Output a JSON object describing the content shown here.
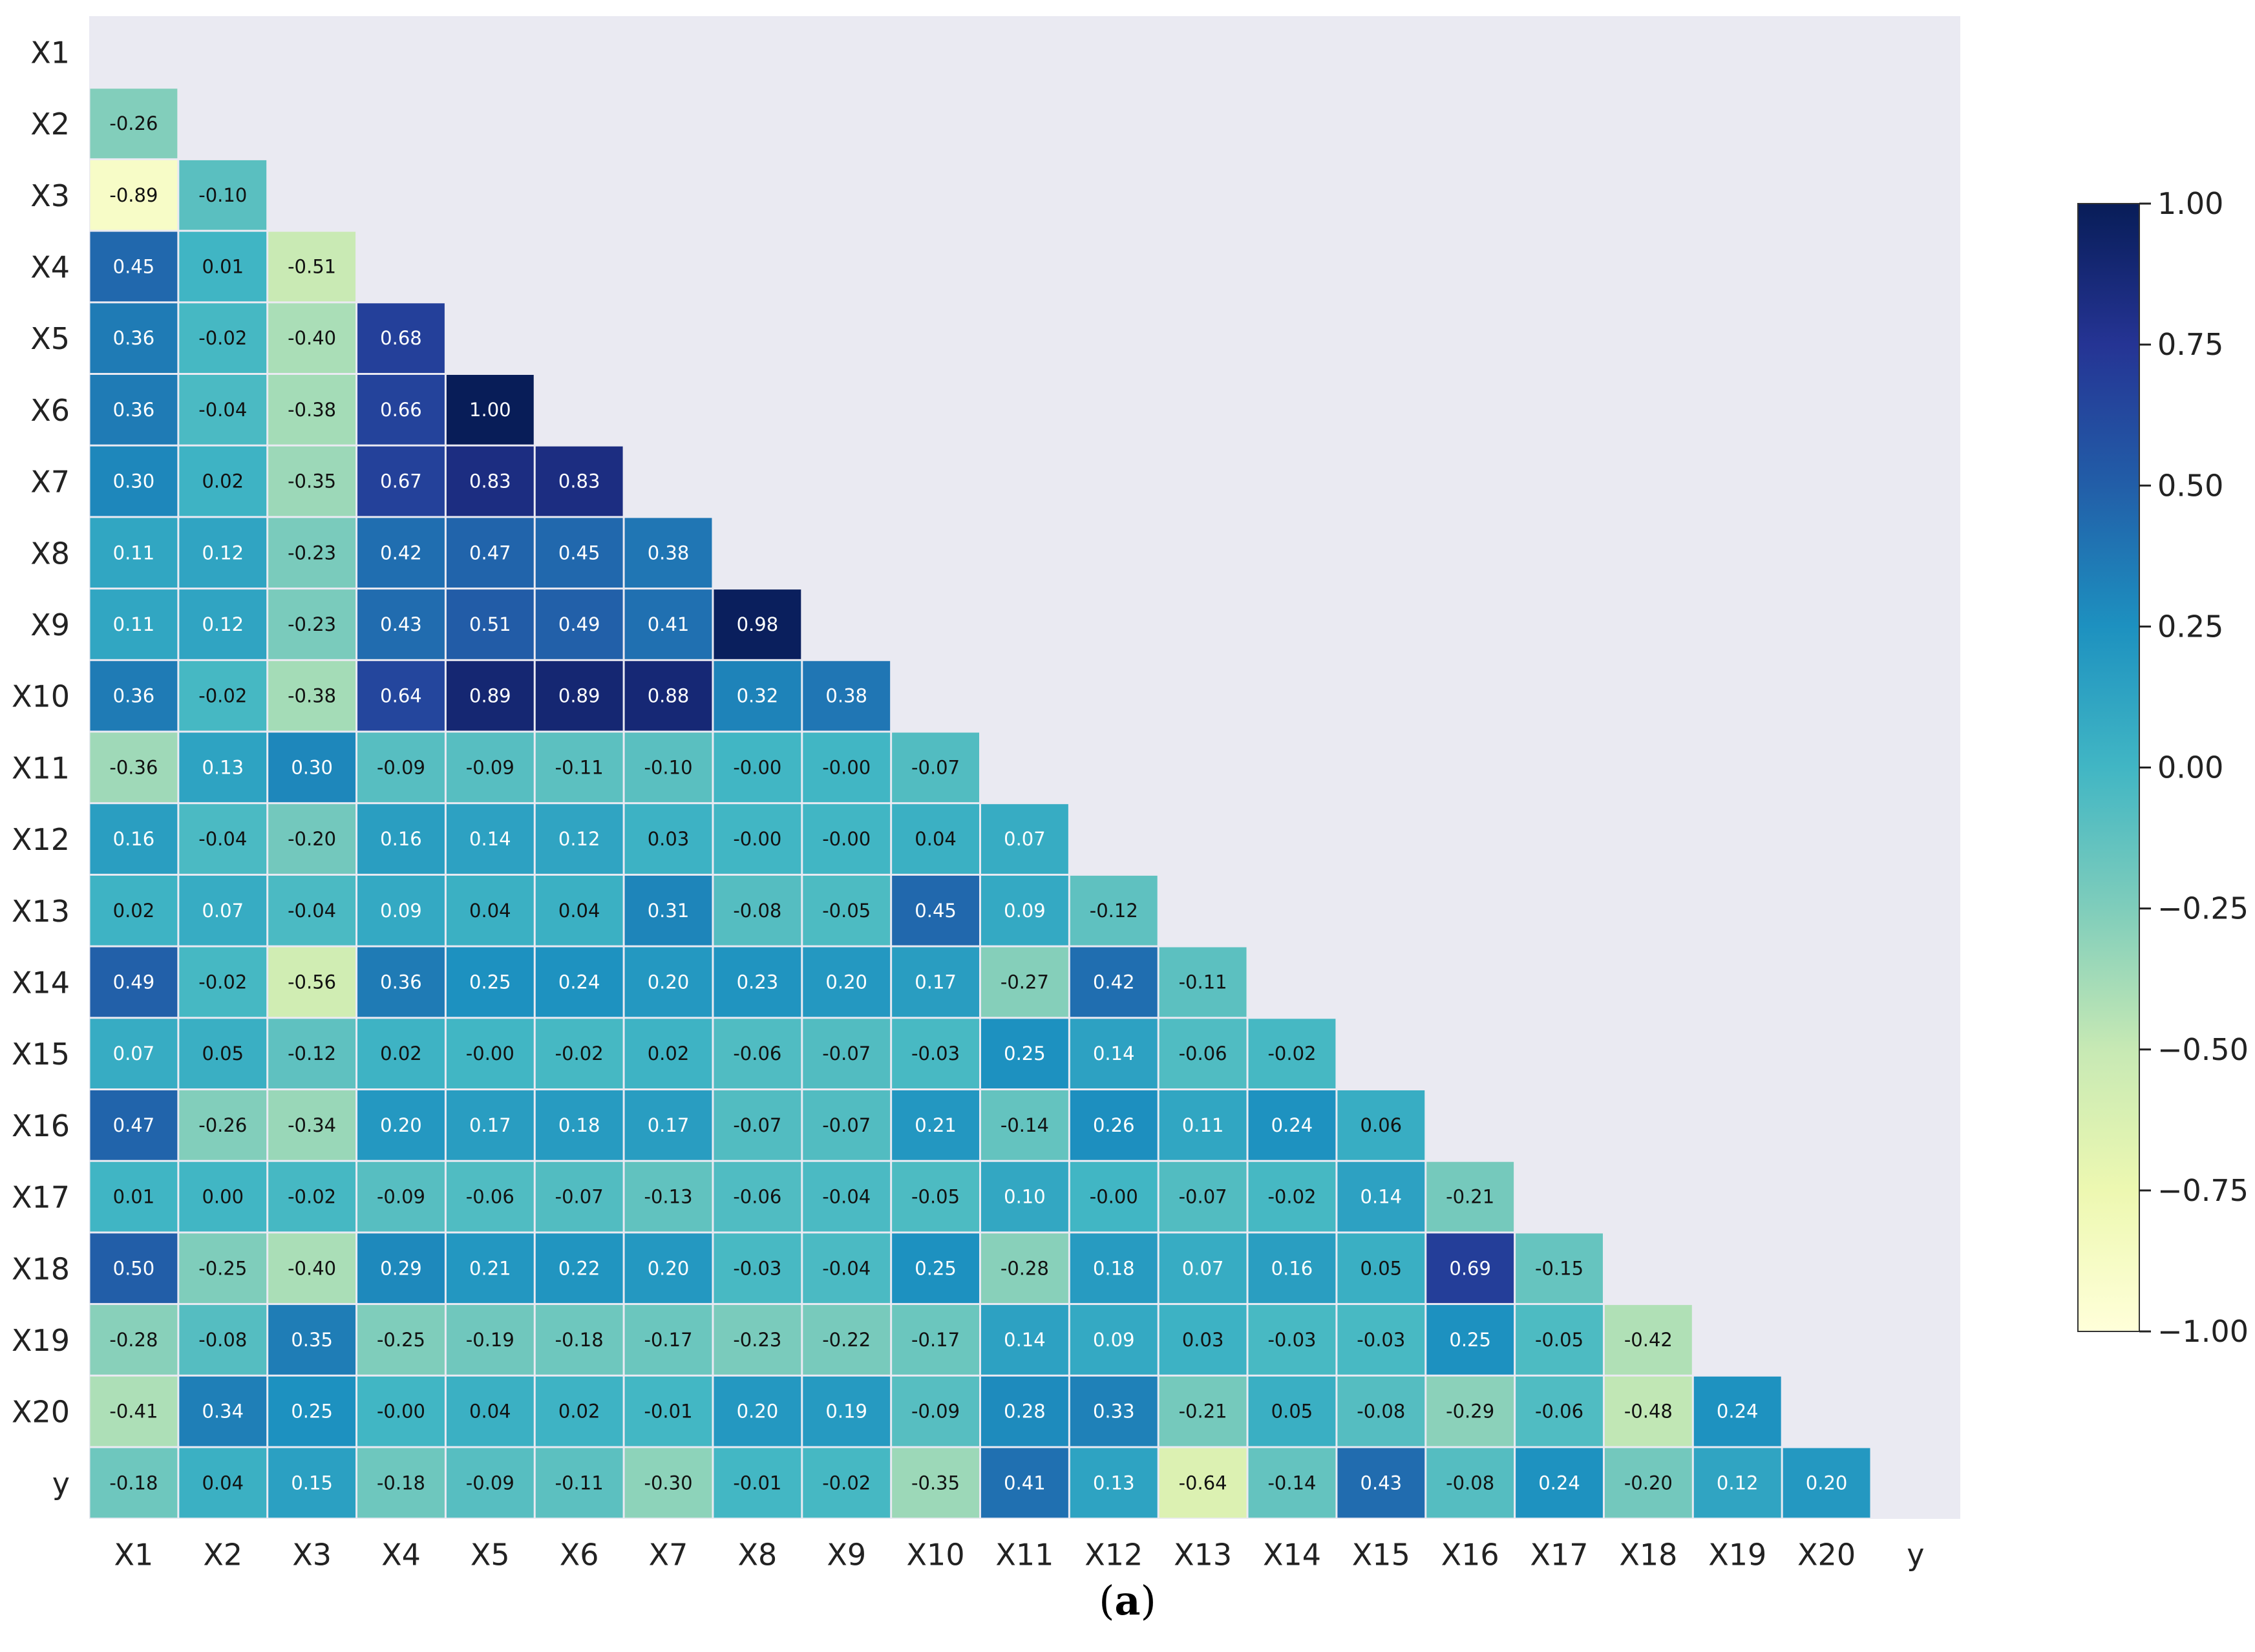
{
  "chart_data": {
    "type": "heatmap",
    "variables": [
      "X1",
      "X2",
      "X3",
      "X4",
      "X5",
      "X6",
      "X7",
      "X8",
      "X9",
      "X10",
      "X11",
      "X12",
      "X13",
      "X14",
      "X15",
      "X16",
      "X17",
      "X18",
      "X19",
      "X20",
      "y"
    ],
    "lower_triangle_rows": [
      [],
      [
        -0.26
      ],
      [
        -0.89,
        -0.1
      ],
      [
        0.45,
        0.01,
        -0.51
      ],
      [
        0.36,
        -0.02,
        -0.4,
        0.68
      ],
      [
        0.36,
        -0.04,
        -0.38,
        0.66,
        1.0
      ],
      [
        0.3,
        0.02,
        -0.35,
        0.67,
        0.83,
        0.83
      ],
      [
        0.11,
        0.12,
        -0.23,
        0.42,
        0.47,
        0.45,
        0.38
      ],
      [
        0.11,
        0.12,
        -0.23,
        0.43,
        0.51,
        0.49,
        0.41,
        0.98
      ],
      [
        0.36,
        -0.02,
        -0.38,
        0.64,
        0.89,
        0.89,
        0.88,
        0.32,
        0.38
      ],
      [
        -0.36,
        0.13,
        0.3,
        -0.09,
        -0.09,
        -0.11,
        -0.1,
        -0.0,
        -0.0,
        -0.07
      ],
      [
        0.16,
        -0.04,
        -0.2,
        0.16,
        0.14,
        0.12,
        0.03,
        -0.0,
        -0.0,
        0.04,
        0.07
      ],
      [
        0.02,
        0.07,
        -0.04,
        0.09,
        0.04,
        0.04,
        0.31,
        -0.08,
        -0.05,
        0.45,
        0.09,
        -0.12
      ],
      [
        0.49,
        -0.02,
        -0.56,
        0.36,
        0.25,
        0.24,
        0.2,
        0.23,
        0.2,
        0.17,
        -0.27,
        0.42,
        -0.11
      ],
      [
        0.07,
        0.05,
        -0.12,
        0.02,
        -0.0,
        -0.02,
        0.02,
        -0.06,
        -0.07,
        -0.03,
        0.25,
        0.14,
        -0.06,
        -0.02
      ],
      [
        0.47,
        -0.26,
        -0.34,
        0.2,
        0.17,
        0.18,
        0.17,
        -0.07,
        -0.07,
        0.21,
        -0.14,
        0.26,
        0.11,
        0.24,
        0.06
      ],
      [
        0.01,
        0.0,
        -0.02,
        -0.09,
        -0.06,
        -0.07,
        -0.13,
        -0.06,
        -0.04,
        -0.05,
        0.1,
        -0.0,
        -0.07,
        -0.02,
        0.14,
        -0.21
      ],
      [
        0.5,
        -0.25,
        -0.4,
        0.29,
        0.21,
        0.22,
        0.2,
        -0.03,
        -0.04,
        0.25,
        -0.28,
        0.18,
        0.07,
        0.16,
        0.05,
        0.69,
        -0.15
      ],
      [
        -0.28,
        -0.08,
        0.35,
        -0.25,
        -0.19,
        -0.18,
        -0.17,
        -0.23,
        -0.22,
        -0.17,
        0.14,
        0.09,
        0.03,
        -0.03,
        -0.03,
        0.25,
        -0.05,
        -0.42
      ],
      [
        -0.41,
        0.34,
        0.25,
        -0.0,
        0.04,
        0.02,
        -0.01,
        0.2,
        0.19,
        -0.09,
        0.28,
        0.33,
        -0.21,
        0.05,
        -0.08,
        -0.29,
        -0.06,
        -0.48,
        0.24
      ],
      [
        -0.18,
        0.04,
        0.15,
        -0.18,
        -0.09,
        -0.11,
        -0.3,
        -0.01,
        -0.02,
        -0.35,
        0.41,
        0.13,
        -0.64,
        -0.14,
        0.43,
        -0.08,
        0.24,
        -0.2,
        0.12,
        0.2
      ]
    ],
    "cell_labels": [
      [],
      [
        "-0.26"
      ],
      [
        "-0.89",
        "-0.10"
      ],
      [
        "0.45",
        "0.01",
        "-0.51"
      ],
      [
        "0.36",
        "-0.02",
        "-0.40",
        "0.68"
      ],
      [
        "0.36",
        "-0.04",
        "-0.38",
        "0.66",
        "1.00"
      ],
      [
        "0.30",
        "0.02",
        "-0.35",
        "0.67",
        "0.83",
        "0.83"
      ],
      [
        "0.11",
        "0.12",
        "-0.23",
        "0.42",
        "0.47",
        "0.45",
        "0.38"
      ],
      [
        "0.11",
        "0.12",
        "-0.23",
        "0.43",
        "0.51",
        "0.49",
        "0.41",
        "0.98"
      ],
      [
        "0.36",
        "-0.02",
        "-0.38",
        "0.64",
        "0.89",
        "0.89",
        "0.88",
        "0.32",
        "0.38"
      ],
      [
        "-0.36",
        "0.13",
        "0.30",
        "-0.09",
        "-0.09",
        "-0.11",
        "-0.10",
        "-0.00",
        "-0.00",
        "-0.07"
      ],
      [
        "0.16",
        "-0.04",
        "-0.20",
        "0.16",
        "0.14",
        "0.12",
        "0.03",
        "-0.00",
        "-0.00",
        "0.04",
        "0.07"
      ],
      [
        "0.02",
        "0.07",
        "-0.04",
        "0.09",
        "0.04",
        "0.04",
        "0.31",
        "-0.08",
        "-0.05",
        "0.45",
        "0.09",
        "-0.12"
      ],
      [
        "0.49",
        "-0.02",
        "-0.56",
        "0.36",
        "0.25",
        "0.24",
        "0.20",
        "0.23",
        "0.20",
        "0.17",
        "-0.27",
        "0.42",
        "-0.11"
      ],
      [
        "0.07",
        "0.05",
        "-0.12",
        "0.02",
        "-0.00",
        "-0.02",
        "0.02",
        "-0.06",
        "-0.07",
        "-0.03",
        "0.25",
        "0.14",
        "-0.06",
        "-0.02"
      ],
      [
        "0.47",
        "-0.26",
        "-0.34",
        "0.20",
        "0.17",
        "0.18",
        "0.17",
        "-0.07",
        "-0.07",
        "0.21",
        "-0.14",
        "0.26",
        "0.11",
        "0.24",
        "0.06"
      ],
      [
        "0.01",
        "0.00",
        "-0.02",
        "-0.09",
        "-0.06",
        "-0.07",
        "-0.13",
        "-0.06",
        "-0.04",
        "-0.05",
        "0.10",
        "-0.00",
        "-0.07",
        "-0.02",
        "0.14",
        "-0.21"
      ],
      [
        "0.50",
        "-0.25",
        "-0.40",
        "0.29",
        "0.21",
        "0.22",
        "0.20",
        "-0.03",
        "-0.04",
        "0.25",
        "-0.28",
        "0.18",
        "0.07",
        "0.16",
        "0.05",
        "0.69",
        "-0.15"
      ],
      [
        "-0.28",
        "-0.08",
        "0.35",
        "-0.25",
        "-0.19",
        "-0.18",
        "-0.17",
        "-0.23",
        "-0.22",
        "-0.17",
        "0.14",
        "0.09",
        "0.03",
        "-0.03",
        "-0.03",
        "0.25",
        "-0.05",
        "-0.42"
      ],
      [
        "-0.41",
        "0.34",
        "0.25",
        "-0.00",
        "0.04",
        "0.02",
        "-0.01",
        "0.20",
        "0.19",
        "-0.09",
        "0.28",
        "0.33",
        "-0.21",
        "0.05",
        "-0.08",
        "-0.29",
        "-0.06",
        "-0.48",
        "0.24"
      ],
      [
        "-0.18",
        "0.04",
        "0.15",
        "-0.18",
        "-0.09",
        "-0.11",
        "-0.30",
        "-0.01",
        "-0.02",
        "-0.35",
        "0.41",
        "0.13",
        "-0.64",
        "-0.14",
        "0.43",
        "-0.08",
        "0.24",
        "-0.20",
        "0.12",
        "0.20"
      ]
    ],
    "colorbar": {
      "range": [
        -1.0,
        1.0
      ],
      "ticks": [
        "1.00",
        "0.75",
        "0.50",
        "0.25",
        "0.00",
        "−0.25",
        "−0.50",
        "−0.75",
        "−1.00"
      ],
      "tick_values": [
        1.0,
        0.75,
        0.5,
        0.25,
        0.0,
        -0.25,
        -0.5,
        -0.75,
        -1.0
      ],
      "colormap": "YlGnBu",
      "colormap_stops": [
        "#ffffd9",
        "#edf8b1",
        "#c7e9b4",
        "#7fcdbb",
        "#41b6c4",
        "#1d91c0",
        "#225ea8",
        "#253494",
        "#081d58"
      ]
    },
    "mask": "upper triangle incl. diagonal",
    "background_color": "#eaeaf2",
    "grid": true,
    "legend": "colorbar right"
  },
  "caption": {
    "open": "(",
    "letter": "a",
    "close": ")"
  }
}
